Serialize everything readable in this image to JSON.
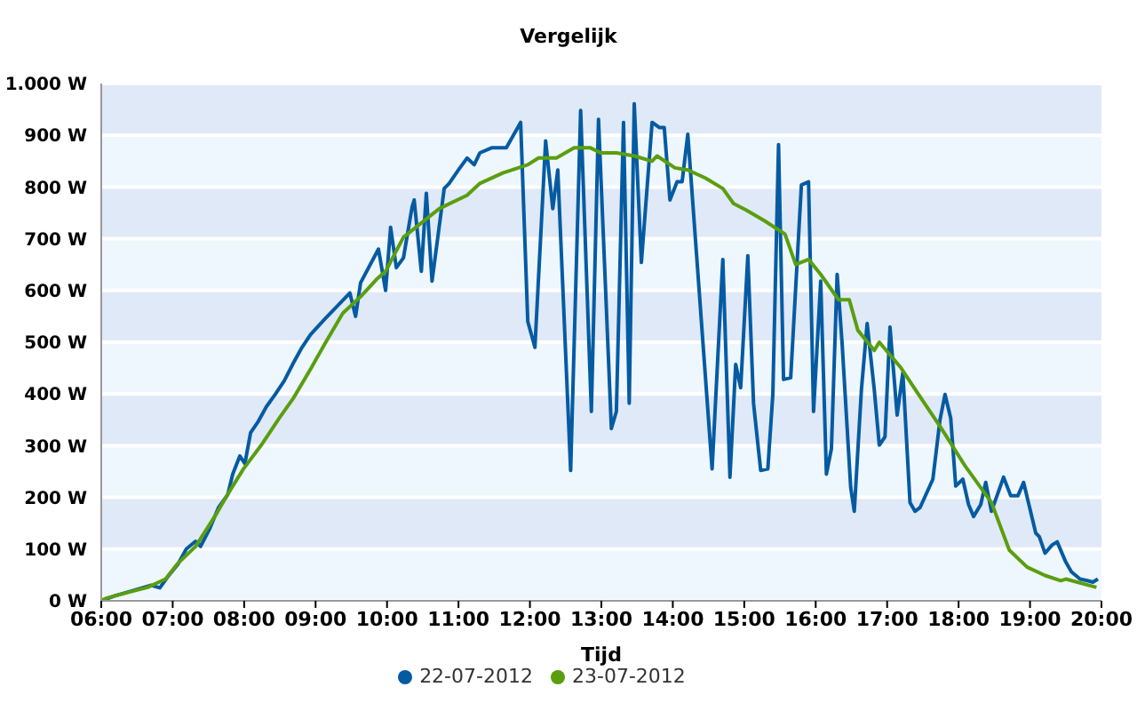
{
  "chart_data": {
    "type": "line",
    "title": "Vergelijk",
    "xlabel": "Tijd",
    "xlim": [
      6,
      20
    ],
    "xticks": [
      {
        "value": 6,
        "label": "06:00"
      },
      {
        "value": 7,
        "label": "07:00"
      },
      {
        "value": 8,
        "label": "08:00"
      },
      {
        "value": 9,
        "label": "09:00"
      },
      {
        "value": 10,
        "label": "10:00"
      },
      {
        "value": 11,
        "label": "11:00"
      },
      {
        "value": 12,
        "label": "12:00"
      },
      {
        "value": 13,
        "label": "13:00"
      },
      {
        "value": 14,
        "label": "14:00"
      },
      {
        "value": 15,
        "label": "15:00"
      },
      {
        "value": 16,
        "label": "16:00"
      },
      {
        "value": 17,
        "label": "17:00"
      },
      {
        "value": 18,
        "label": "18:00"
      },
      {
        "value": 19,
        "label": "19:00"
      },
      {
        "value": 20,
        "label": "20:00"
      }
    ],
    "ylim": [
      0,
      1000
    ],
    "yticks": [
      {
        "value": 0,
        "label": "0 W"
      },
      {
        "value": 100,
        "label": "100 W"
      },
      {
        "value": 200,
        "label": "200 W"
      },
      {
        "value": 300,
        "label": "300 W"
      },
      {
        "value": 400,
        "label": "400 W"
      },
      {
        "value": 500,
        "label": "500 W"
      },
      {
        "value": 600,
        "label": "600 W"
      },
      {
        "value": 700,
        "label": "700 W"
      },
      {
        "value": 800,
        "label": "800 W"
      },
      {
        "value": 900,
        "label": "900 W"
      },
      {
        "value": 1000,
        "label": "1.000 W"
      }
    ],
    "grid": "y",
    "legend": "bottom",
    "marker": "none",
    "line_style": "solid",
    "series": [
      {
        "name": "22-07-2012",
        "color": "#055ba2",
        "x": [
          6.0,
          6.2,
          6.45,
          6.7,
          6.82,
          6.95,
          7.07,
          7.19,
          7.32,
          7.39,
          7.52,
          7.64,
          7.77,
          7.84,
          7.94,
          8.01,
          8.09,
          8.19,
          8.31,
          8.44,
          8.56,
          8.69,
          8.81,
          8.93,
          9.13,
          9.48,
          9.56,
          9.63,
          9.88,
          9.98,
          10.05,
          10.13,
          10.23,
          10.35,
          10.38,
          10.48,
          10.55,
          10.63,
          10.8,
          10.87,
          11.0,
          11.12,
          11.22,
          11.3,
          11.47,
          11.67,
          11.87,
          11.97,
          12.07,
          12.22,
          12.32,
          12.39,
          12.57,
          12.71,
          12.86,
          12.96,
          13.14,
          13.21,
          13.31,
          13.39,
          13.46,
          13.56,
          13.71,
          13.81,
          13.88,
          13.96,
          14.06,
          14.13,
          14.21,
          14.55,
          14.7,
          14.8,
          14.88,
          14.95,
          15.05,
          15.13,
          15.23,
          15.33,
          15.4,
          15.48,
          15.55,
          15.65,
          15.8,
          15.9,
          15.97,
          16.07,
          16.15,
          16.22,
          16.3,
          16.37,
          16.49,
          16.54,
          16.64,
          16.72,
          16.82,
          16.89,
          16.97,
          17.04,
          17.14,
          17.22,
          17.32,
          17.39,
          17.46,
          17.64,
          17.74,
          17.81,
          17.89,
          17.96,
          18.06,
          18.14,
          18.21,
          18.31,
          18.38,
          18.46,
          18.63,
          18.73,
          18.83,
          18.91,
          19.08,
          19.13,
          19.21,
          19.31,
          19.38,
          19.5,
          19.58,
          19.7,
          19.8,
          19.88,
          19.95
        ],
        "values": [
          0,
          10,
          20,
          30,
          25,
          50,
          70,
          100,
          115,
          105,
          140,
          180,
          205,
          245,
          280,
          265,
          325,
          345,
          375,
          400,
          425,
          460,
          490,
          515,
          545,
          595,
          550,
          615,
          680,
          600,
          722,
          644,
          663,
          761,
          775,
          637,
          788,
          618,
          797,
          807,
          833,
          856,
          843,
          866,
          876,
          876,
          925,
          540,
          490,
          889,
          758,
          833,
          252,
          948,
          366,
          931,
          333,
          366,
          925,
          382,
          961,
          654,
          925,
          915,
          915,
          775,
          810,
          810,
          902,
          255,
          660,
          239,
          457,
          412,
          667,
          382,
          252,
          255,
          399,
          882,
          428,
          431,
          804,
          810,
          366,
          618,
          245,
          294,
          631,
          497,
          219,
          173,
          408,
          536,
          408,
          301,
          317,
          529,
          359,
          441,
          190,
          173,
          180,
          235,
          350,
          399,
          353,
          222,
          235,
          186,
          163,
          186,
          229,
          173,
          239,
          203,
          203,
          229,
          131,
          124,
          92,
          108,
          114,
          75,
          56,
          42,
          39,
          36,
          42
        ]
      },
      {
        "name": "23-07-2012",
        "color": "#5a9e0f",
        "x": [
          6.0,
          6.07,
          6.37,
          6.65,
          6.9,
          7.07,
          7.32,
          7.62,
          7.77,
          7.99,
          8.24,
          8.49,
          8.69,
          8.93,
          9.13,
          9.38,
          9.63,
          9.85,
          9.98,
          10.23,
          10.73,
          11.12,
          11.3,
          11.62,
          11.97,
          12.12,
          12.37,
          12.62,
          12.84,
          12.99,
          13.21,
          13.46,
          13.71,
          13.78,
          14.03,
          14.21,
          14.46,
          14.7,
          14.85,
          15.03,
          15.28,
          15.57,
          15.72,
          15.9,
          16.07,
          16.32,
          16.47,
          16.59,
          16.82,
          16.89,
          17.19,
          17.44,
          17.76,
          18.09,
          18.46,
          18.71,
          18.96,
          19.21,
          19.43,
          19.5,
          19.93
        ],
        "values": [
          0,
          5,
          16,
          26,
          42,
          72,
          105,
          170,
          206,
          255,
          301,
          353,
          392,
          448,
          497,
          556,
          588,
          621,
          637,
          703,
          758,
          784,
          807,
          827,
          843,
          856,
          856,
          876,
          876,
          866,
          866,
          860,
          850,
          860,
          837,
          833,
          817,
          797,
          768,
          755,
          735,
          709,
          650,
          660,
          631,
          582,
          582,
          523,
          484,
          500,
          451,
          399,
          333,
          261,
          190,
          98,
          65,
          49,
          39,
          42,
          26
        ]
      }
    ]
  }
}
